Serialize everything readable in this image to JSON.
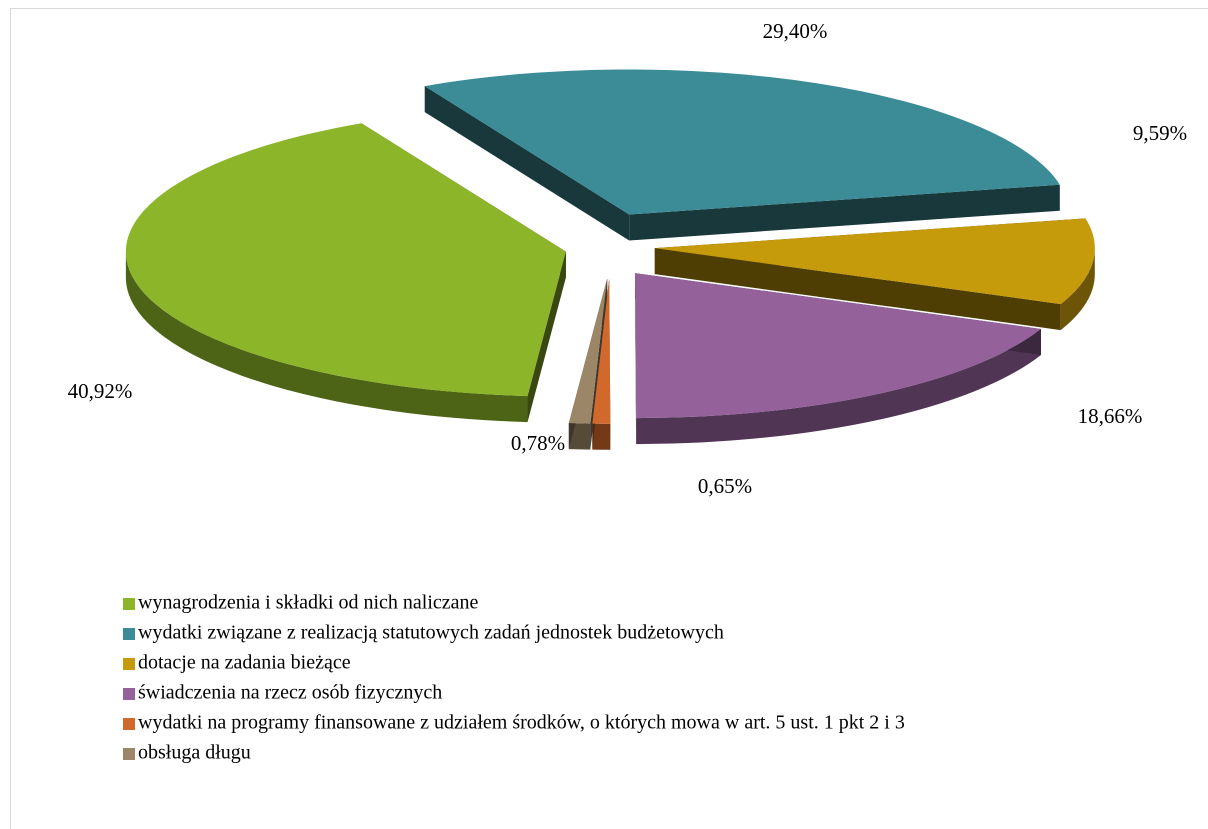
{
  "chart_data": {
    "type": "pie",
    "categories": [
      "wynagrodzenia i składki od nich naliczane",
      "wydatki związane z realizacją statutowych zadań jednostek budżetowych",
      "dotacje na zadania bieżące",
      "świadczenia na rzecz osób fizycznych",
      "wydatki na programy finansowane z udziałem środków, o których mowa w art. 5 ust. 1 pkt 2 i 3",
      "obsługa długu"
    ],
    "values": [
      40.92,
      29.4,
      9.59,
      18.66,
      0.65,
      0.78
    ],
    "value_labels": [
      "40,92%",
      "29,40%",
      "9,59%",
      "18,66%",
      "0,65%",
      "0,78%"
    ],
    "colors": [
      "#8cb529",
      "#3b8c97",
      "#c59a0b",
      "#94619b",
      "#d2692c",
      "#9c8668"
    ],
    "legend": "bottom"
  }
}
